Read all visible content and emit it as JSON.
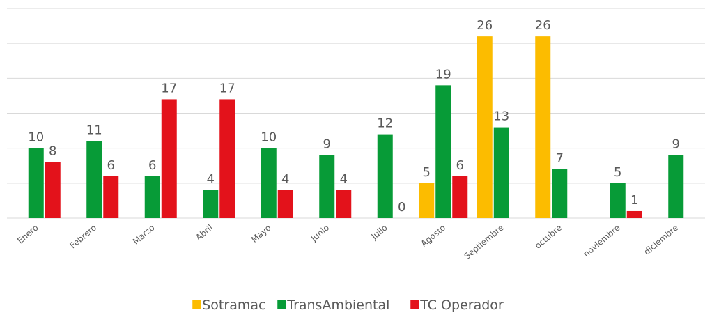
{
  "chart_data": {
    "type": "bar",
    "categories": [
      "Enero",
      "Febrero",
      "Marzo",
      "Abril",
      "Mayo",
      "Junio",
      "Julio",
      "Agosto",
      "Septiembre",
      "octubre",
      "noviembre",
      "diciembre"
    ],
    "series": [
      {
        "name": "Sotramac",
        "color": "#fcbc00",
        "values": [
          null,
          null,
          null,
          null,
          null,
          null,
          null,
          5,
          26,
          26,
          null,
          null
        ]
      },
      {
        "name": "TransAmbiental",
        "color": "#079b37",
        "values": [
          10,
          11,
          6,
          4,
          10,
          9,
          12,
          19,
          13,
          7,
          5,
          9
        ]
      },
      {
        "name": "TC Operador",
        "color": "#e3121b",
        "values": [
          8,
          6,
          17,
          17,
          4,
          4,
          0,
          6,
          null,
          null,
          1,
          null
        ]
      }
    ],
    "ylim": [
      0,
      30
    ],
    "yticks": [
      0,
      5,
      10,
      15,
      20,
      25,
      30
    ],
    "grid": true,
    "legend": "bottom"
  }
}
